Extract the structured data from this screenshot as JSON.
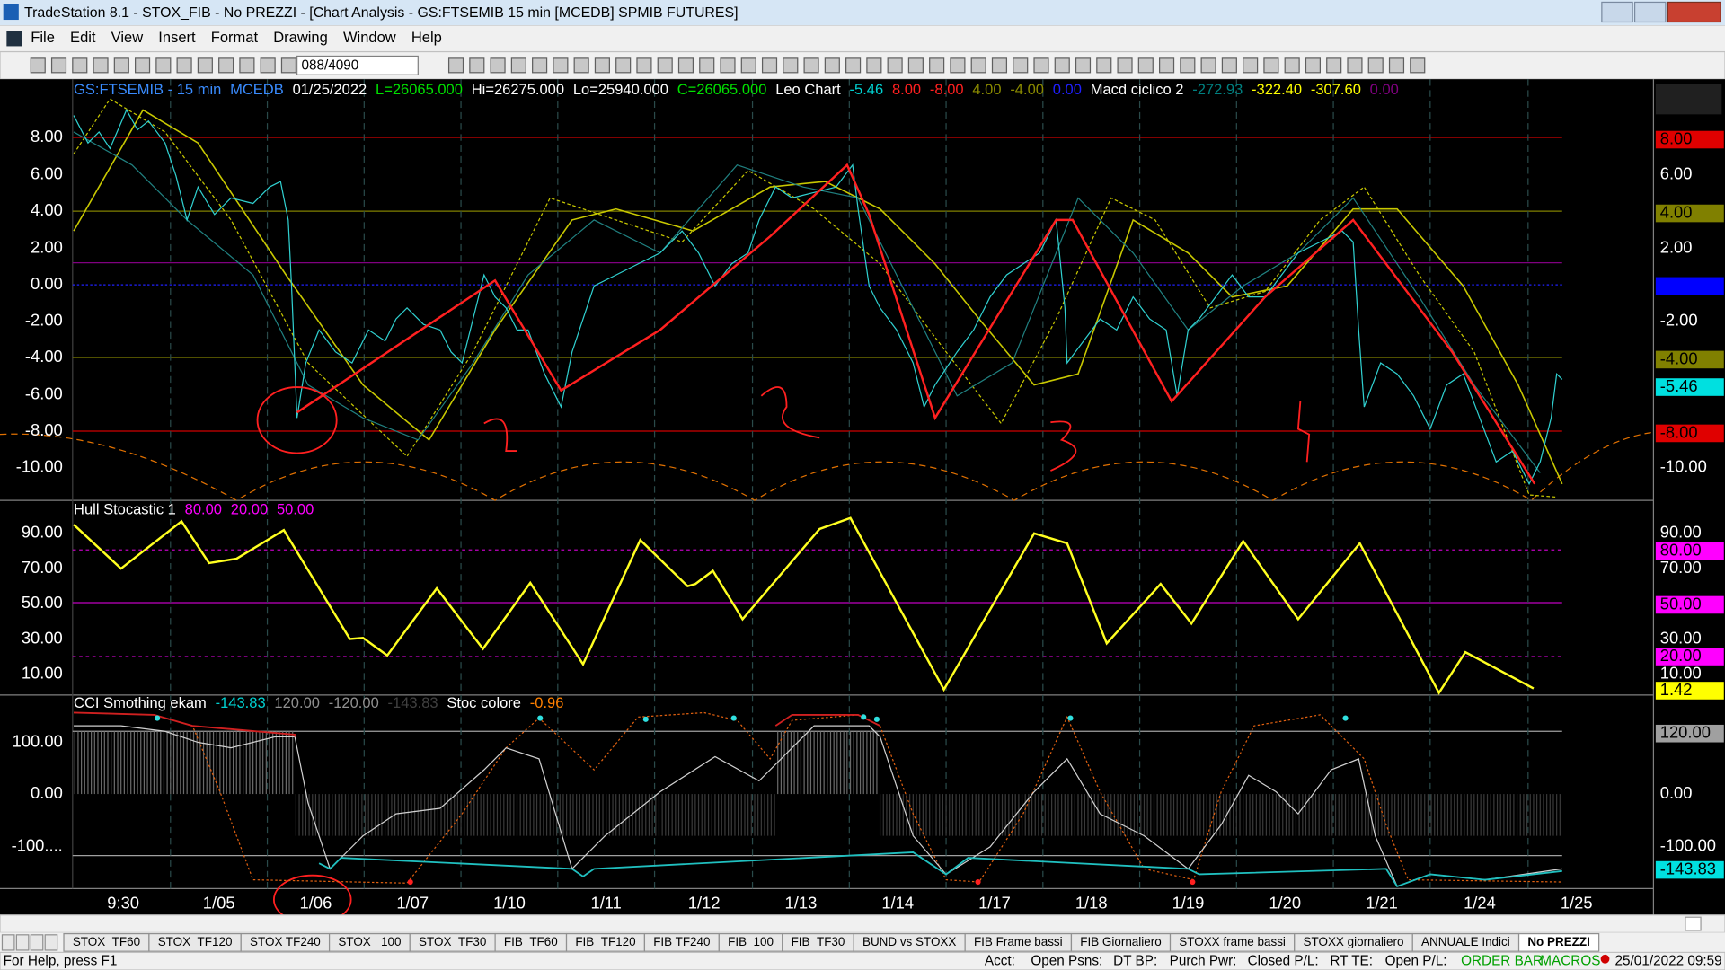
{
  "window": {
    "title": "TradeStation 8.1 - STOX_FIB - No PREZZI - [Chart Analysis - GS:FTSEMIB 15 min  [MCEDB] SPMIB FUTURES]"
  },
  "menu": [
    "File",
    "Edit",
    "View",
    "Insert",
    "Format",
    "Drawing",
    "Window",
    "Help"
  ],
  "toolbar": {
    "bar_count": "088/4090"
  },
  "panes": [
    {
      "header": [
        {
          "text": "GS:FTSEMIB - 15 min",
          "color": "#3a8cff"
        },
        {
          "text": "MCEDB",
          "color": "#3a8cff"
        },
        {
          "text": "01/25/2022",
          "color": "#ffffff"
        },
        {
          "text": "L=26065.000",
          "color": "#00e000"
        },
        {
          "text": "Hi=26275.000",
          "color": "#ffffff"
        },
        {
          "text": "Lo=25940.000",
          "color": "#ffffff"
        },
        {
          "text": "C=26065.000",
          "color": "#00e000"
        },
        {
          "text": "Leo Chart",
          "color": "#ffffff"
        },
        {
          "text": "-5.46",
          "color": "#00d0d0"
        },
        {
          "text": "8.00",
          "color": "#ff2020"
        },
        {
          "text": "-8.00",
          "color": "#ff2020"
        },
        {
          "text": "4.00",
          "color": "#8a8a00"
        },
        {
          "text": "-4.00",
          "color": "#8a8a00"
        },
        {
          "text": "0.00",
          "color": "#2020ff"
        },
        {
          "text": "Macd ciclico 2",
          "color": "#ffffff"
        },
        {
          "text": "-272.93",
          "color": "#008080"
        },
        {
          "text": "-322.40",
          "color": "#ffff00"
        },
        {
          "text": "-307.60",
          "color": "#ffff00"
        },
        {
          "text": "0.00",
          "color": "#800080"
        }
      ],
      "y_labels": [
        "8.00",
        "6.00",
        "4.00",
        "2.00",
        "0.00",
        "-2.00",
        "-4.00",
        "-6.00",
        "-8.00",
        "-10.00"
      ],
      "right_labels": [
        {
          "text": "8.00",
          "bg": "#e00000",
          "fg": "#000000"
        },
        {
          "text": "6.00",
          "bg": "",
          "fg": "#ffffff"
        },
        {
          "text": "4.00",
          "bg": "#808000",
          "fg": "#000000"
        },
        {
          "text": "2.00",
          "bg": "",
          "fg": "#ffffff"
        },
        {
          "text": "0.00",
          "bg": "#0000ff",
          "fg": "#0000ff"
        },
        {
          "text": "-2.00",
          "bg": "",
          "fg": "#ffffff"
        },
        {
          "text": "-4.00",
          "bg": "#808000",
          "fg": "#000000"
        },
        {
          "text": "-5.46",
          "bg": "#00e0e0",
          "fg": "#000000"
        },
        {
          "text": "-8.00",
          "bg": "#e00000",
          "fg": "#000000"
        },
        {
          "text": "-10.00",
          "bg": "",
          "fg": "#ffffff"
        }
      ]
    },
    {
      "header": [
        {
          "text": "Hull Stocastic 1",
          "color": "#ffffff"
        },
        {
          "text": "80.00",
          "color": "#ff00ff"
        },
        {
          "text": "20.00",
          "color": "#ff00ff"
        },
        {
          "text": "50.00",
          "color": "#ff00ff"
        }
      ],
      "y_labels": [
        "90.00",
        "70.00",
        "50.00",
        "30.00",
        "10.00"
      ],
      "right_labels": [
        {
          "text": "90.00",
          "bg": "",
          "fg": "#ffffff"
        },
        {
          "text": "80.00",
          "bg": "#ff00ff",
          "fg": "#000000"
        },
        {
          "text": "70.00",
          "bg": "",
          "fg": "#ffffff"
        },
        {
          "text": "50.00",
          "bg": "#ff00ff",
          "fg": "#000000"
        },
        {
          "text": "30.00",
          "bg": "",
          "fg": "#ffffff"
        },
        {
          "text": "20.00",
          "bg": "#ff00ff",
          "fg": "#000000"
        },
        {
          "text": "10.00",
          "bg": "",
          "fg": "#ffffff"
        },
        {
          "text": "1.42",
          "bg": "#ffff00",
          "fg": "#000000"
        }
      ]
    },
    {
      "header": [
        {
          "text": "CCI Smothing ekam",
          "color": "#ffffff"
        },
        {
          "text": "-143.83",
          "color": "#00d0d0"
        },
        {
          "text": "120.00",
          "color": "#909090"
        },
        {
          "text": "-120.00",
          "color": "#909090"
        },
        {
          "text": "-143.83",
          "color": "#404040"
        },
        {
          "text": "Stoc colore",
          "color": "#ffffff"
        },
        {
          "text": "-0.96",
          "color": "#ff8000"
        }
      ],
      "y_labels": [
        "100.00",
        "0.00",
        "-100...."
      ],
      "right_labels": [
        {
          "text": "120.00",
          "bg": "#a0a0a0",
          "fg": "#000000"
        },
        {
          "text": "0.00",
          "bg": "",
          "fg": "#ffffff"
        },
        {
          "text": "-100.00",
          "bg": "",
          "fg": "#ffffff"
        },
        {
          "text": "-143.83",
          "bg": "#00e0e0",
          "fg": "#000000"
        }
      ]
    }
  ],
  "x_labels": [
    "9:30",
    "1/05",
    "1/06",
    "1/07",
    "1/10",
    "1/11",
    "1/12",
    "1/13",
    "1/14",
    "1/17",
    "1/18",
    "1/19",
    "1/20",
    "1/21",
    "1/24",
    "1/25"
  ],
  "tabs": [
    "STOX_TF60",
    "STOX_TF120",
    "STOX TF240",
    "STOX _100",
    "STOX_TF30",
    "FIB_TF60",
    "FIB_TF120",
    "FIB TF240",
    "FIB_100",
    "FIB_TF30",
    "BUND vs STOXX",
    "FIB Frame bassi",
    "FIB Giornaliero",
    "STOXX frame bassi",
    "STOXX giornaliero",
    "ANNUALE Indici",
    "No PREZZI"
  ],
  "status": {
    "help": "For Help, press F1",
    "fields": [
      "Acct:",
      "Open Psns:",
      "DT BP:",
      "Purch Pwr:",
      "Closed P/L:",
      "RT TE:",
      "Open P/L:"
    ],
    "order_bar": "ORDER BAR",
    "macros": "MACROS",
    "datetime": "25/01/2022 09:59"
  }
}
